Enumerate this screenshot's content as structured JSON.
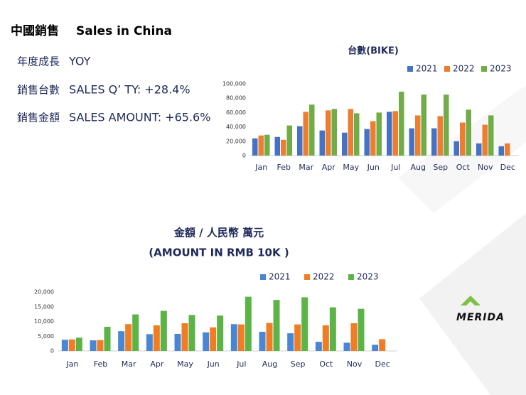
{
  "title": "中國銷售",
  "title_en": "Sales in China",
  "yoy": [
    [
      "年度成長",
      "YOY"
    ],
    [
      "銷售台數",
      "SALES Q’ TY: +28.4%"
    ],
    [
      "銷售金額",
      "SALES AMOUNT: +65.6%"
    ]
  ],
  "logo": "MERIDA",
  "chart_data": [
    {
      "type": "bar",
      "title": "台數(BIKE)",
      "categories": [
        "Jan",
        "Feb",
        "Mar",
        "Apr",
        "May",
        "Jun",
        "Jul",
        "Aug",
        "Sep",
        "Oct",
        "Nov",
        "Dec"
      ],
      "series": [
        {
          "name": "2021",
          "color": "#4472c4",
          "values": [
            24000,
            26000,
            41000,
            35000,
            32000,
            37000,
            61000,
            38000,
            38000,
            20000,
            17000,
            13000
          ]
        },
        {
          "name": "2022",
          "color": "#ed7d31",
          "values": [
            28000,
            22000,
            61000,
            63000,
            65000,
            48000,
            62000,
            56000,
            55000,
            46000,
            43000,
            17000
          ]
        },
        {
          "name": "2023",
          "color": "#70ad47",
          "values": [
            29000,
            42000,
            71000,
            65000,
            59000,
            60000,
            89000,
            85000,
            85000,
            64000,
            56000,
            null
          ]
        }
      ],
      "ylim": [
        0,
        100000
      ],
      "yticks": [
        0,
        {
          "value": 20000,
          "label": "20,000"
        },
        {
          "value": 40000,
          "label": "40,000"
        },
        {
          "value": 60000,
          "label": "60,000"
        },
        {
          "value": 80000,
          "label": "80,000"
        },
        {
          "value": 100000,
          "label": "100,000"
        }
      ],
      "grid": false,
      "legend": "top-right"
    },
    {
      "type": "bar",
      "title": [
        "金額 / 人民幣 萬元",
        "(AMOUNT IN RMB 10K )"
      ],
      "categories": [
        "Jan",
        "Feb",
        "Mar",
        "Apr",
        "May",
        "Jun",
        "Jul",
        "Aug",
        "Sep",
        "Oct",
        "Nov",
        "Dec"
      ],
      "series": [
        {
          "name": "2021",
          "color": "#4a86d6",
          "values": [
            3800,
            3600,
            6700,
            5700,
            5800,
            6300,
            9100,
            6500,
            6000,
            3100,
            2800,
            2100
          ]
        },
        {
          "name": "2022",
          "color": "#f07d24",
          "values": [
            3900,
            3700,
            9100,
            8700,
            9400,
            8000,
            9000,
            9500,
            9000,
            8700,
            9400,
            4000
          ]
        },
        {
          "name": "2023",
          "color": "#5cb346",
          "values": [
            4500,
            8200,
            12400,
            13600,
            12200,
            12000,
            18400,
            17300,
            18200,
            14800,
            14300,
            null
          ]
        }
      ],
      "ylim": [
        0,
        20000
      ],
      "yticks": [
        0,
        {
          "value": 5000,
          "label": "5,000"
        },
        {
          "value": 10000,
          "label": "10,000"
        },
        {
          "value": 15000,
          "label": "15,000"
        },
        {
          "value": 20000,
          "label": "20,000"
        }
      ],
      "grid": false,
      "legend": "top"
    }
  ]
}
